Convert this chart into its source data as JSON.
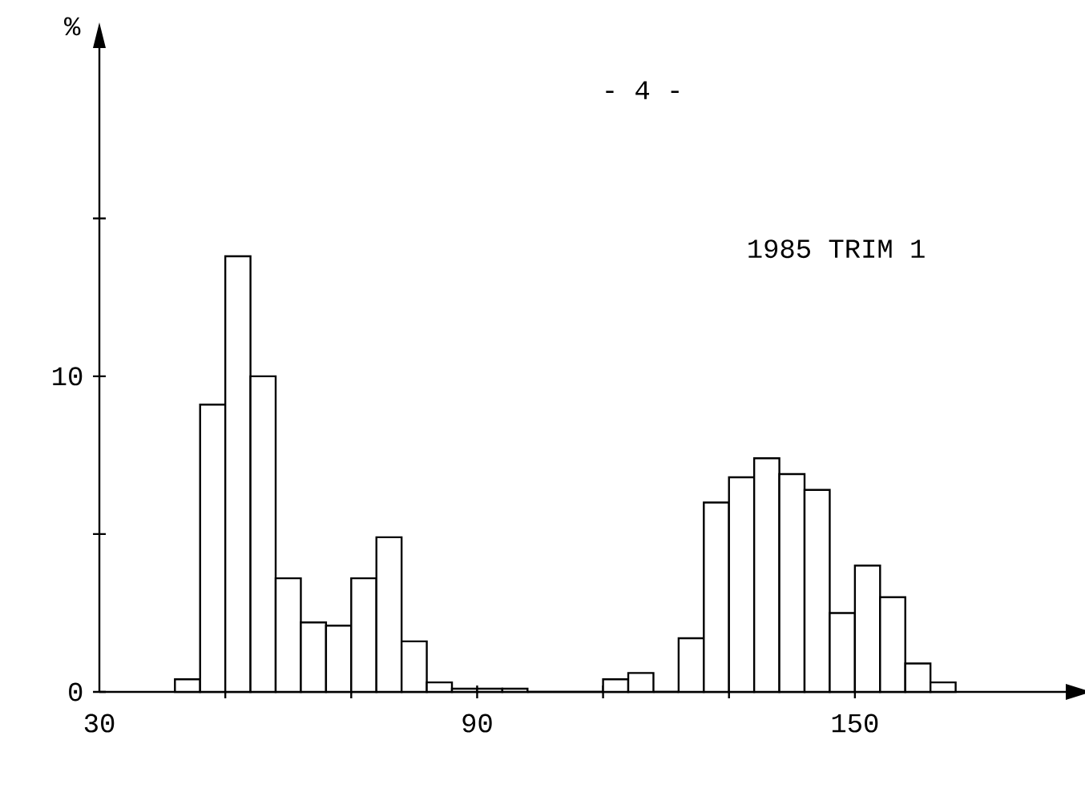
{
  "chart_data": {
    "type": "histogram",
    "title": "1985 TRIM  1",
    "ylabel": "%",
    "annotations": [
      "- 4 -"
    ],
    "bins": [
      42,
      46,
      50,
      54,
      58,
      62,
      66,
      70,
      74,
      78,
      82,
      86,
      90,
      94,
      98,
      102,
      106,
      110,
      114,
      118,
      122,
      126,
      130,
      134,
      138,
      142,
      146,
      150,
      154,
      158,
      162,
      166
    ],
    "values": [
      0.4,
      9.1,
      13.8,
      10.0,
      3.6,
      2.2,
      2.1,
      3.6,
      4.9,
      1.6,
      0.3,
      0.1,
      0.1,
      0.1,
      0,
      0,
      0,
      0.4,
      0.6,
      0,
      1.7,
      6.0,
      6.8,
      7.4,
      6.9,
      6.4,
      2.5,
      4.0,
      3.0,
      0.9,
      0.3
    ],
    "color": "#ffffff",
    "xlim": [
      30,
      184
    ],
    "ylim": [
      0,
      20.5
    ],
    "xticks": [
      30,
      {
        "value": 50,
        "label": null
      },
      {
        "value": 70,
        "label": null
      },
      90,
      {
        "value": 110,
        "label": null
      },
      {
        "value": 130,
        "label": null
      },
      150
    ],
    "yticks": [
      0,
      {
        "value": 5,
        "label": null
      },
      10,
      {
        "value": 15,
        "label": null
      }
    ]
  }
}
